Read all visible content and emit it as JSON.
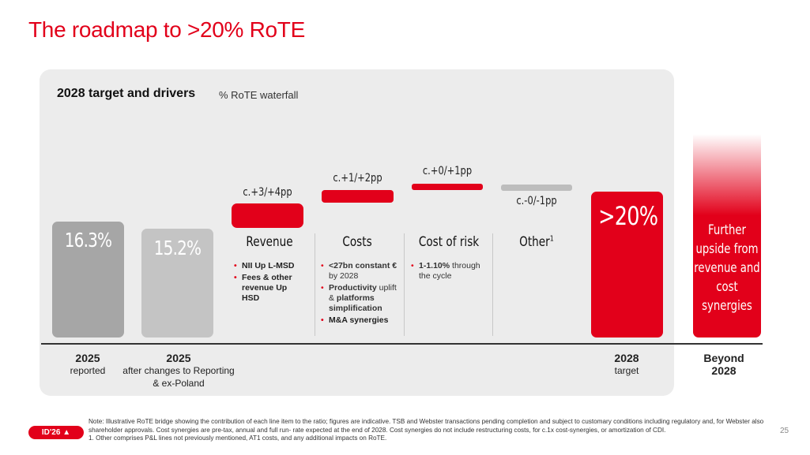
{
  "title": "The roadmap to >20% RoTE",
  "panel": {
    "heading": "2028 target and drivers",
    "subheading": "% RoTE waterfall"
  },
  "chart_data": {
    "type": "bar",
    "subtype": "waterfall",
    "unit": "% RoTE",
    "categories": [
      {
        "label": "2025",
        "sublabel": "reported"
      },
      {
        "label": "2025",
        "sublabel": "after changes to Reporting & ex-Poland"
      },
      {
        "label": "Revenue"
      },
      {
        "label": "Costs"
      },
      {
        "label": "Cost of risk"
      },
      {
        "label": "Other",
        "footnote": "1"
      },
      {
        "label": "2028",
        "sublabel": "target"
      },
      {
        "label": "Beyond",
        "sublabel": "2028"
      }
    ],
    "values": [
      16.3,
      15.2,
      null,
      null,
      null,
      null,
      20,
      null
    ],
    "value_labels": [
      "16.3%",
      "15.2%",
      "c.+3/+4pp",
      "c.+1/+2pp",
      "c.+0/+1pp",
      "c.-0/-1pp",
      ">20%",
      "Further upside from revenue and cost synergies"
    ],
    "drivers": [
      {
        "name": "Revenue",
        "delta": "c.+3/+4pp",
        "bullets": [
          "NII Up L-MSD",
          "Fees & other revenue Up HSD"
        ],
        "bold": [
          true,
          true
        ]
      },
      {
        "name": "Costs",
        "delta": "c.+1/+2pp",
        "bullets": [
          "<27bn constant € by 2028",
          "Productivity uplift & platforms simplification",
          "M&A synergies"
        ],
        "bold": [
          true,
          true,
          true
        ]
      },
      {
        "name": "Cost of risk",
        "delta": "c.+0/+1pp",
        "bullets": [
          "1-1.10% through the cycle"
        ],
        "bold": [
          true
        ]
      },
      {
        "name": "Other",
        "footnote": "1",
        "delta": "c.-0/-1pp",
        "bullets": []
      }
    ],
    "beyond_text": "Further upside from revenue and cost synergies",
    "colors": {
      "reported": "#a6a6a6",
      "adjusted": "#c4c4c4",
      "positive": "#e2001a",
      "other": "#bdbdbd",
      "target": "#e2001a"
    }
  },
  "footnote": {
    "note": "Note: Illustrative RoTE bridge showing the contribution of each line item to the ratio; figures are indicative. TSB and Webster transactions pending completion and subject to customary conditions including regulatory and, for Webster also shareholder approvals. Cost synergies are pre-tax, annual and full run- rate expected at the end of 2028. Cost synergies do not include restructuring costs, for c.1x cost-synergies, or amortization of CDI.",
    "note1": "1.  Other comprises P&L lines not previously mentioned, AT1 costs, and any additional impacts on RoTE."
  },
  "logo_text": "ID'26",
  "page_number": "25"
}
